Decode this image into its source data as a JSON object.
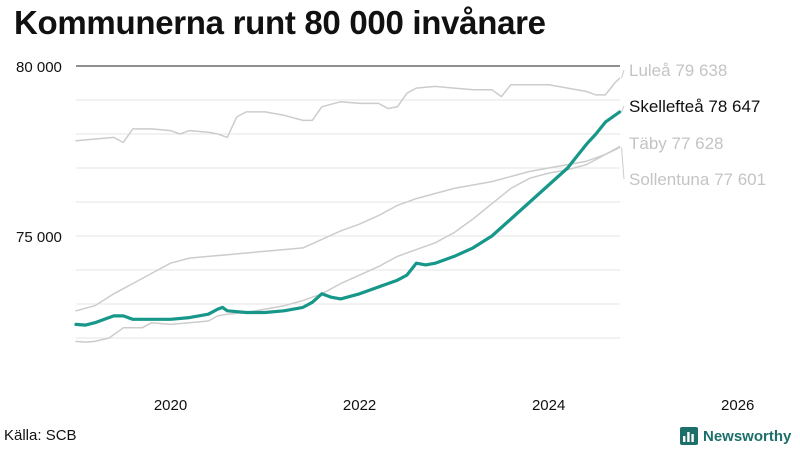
{
  "header": {
    "title": "Kommunerna runt 80 000 invånare"
  },
  "footer": {
    "source": "Källa: SCB",
    "brand": "Newsworthy",
    "brand_icon": "bar-chart-logo-icon",
    "brand_color": "#1d6f6a"
  },
  "chart_data": {
    "type": "line",
    "title": "Kommunerna runt 80 000 invånare",
    "xlabel": "",
    "ylabel": "",
    "xlim": [
      2019.0,
      2026.5
    ],
    "ylim": [
      71000,
      80000
    ],
    "x_ticks": [
      2020,
      2022,
      2024,
      2026
    ],
    "x_tick_labels": [
      "2020",
      "2022",
      "2024",
      "2026"
    ],
    "y_ticks": [
      75000,
      80000
    ],
    "y_tick_labels": [
      "75 000",
      "80 000"
    ],
    "gridlines_y": [
      72000,
      73000,
      74000,
      75000,
      76000,
      77000,
      78000,
      79000,
      80000
    ],
    "grid": true,
    "series": [
      {
        "name": "Luleå",
        "end_label": "Luleå 79 638",
        "color": "#cccccc",
        "label_color": "#c4c4c4",
        "highlight": false,
        "points": [
          [
            2019.0,
            77800
          ],
          [
            2019.4,
            77900
          ],
          [
            2019.5,
            77750
          ],
          [
            2019.6,
            78150
          ],
          [
            2019.8,
            78150
          ],
          [
            2020.0,
            78100
          ],
          [
            2020.1,
            78000
          ],
          [
            2020.2,
            78100
          ],
          [
            2020.4,
            78050
          ],
          [
            2020.5,
            78000
          ],
          [
            2020.6,
            77900
          ],
          [
            2020.7,
            78500
          ],
          [
            2020.8,
            78650
          ],
          [
            2021.0,
            78650
          ],
          [
            2021.2,
            78550
          ],
          [
            2021.4,
            78400
          ],
          [
            2021.5,
            78400
          ],
          [
            2021.6,
            78800
          ],
          [
            2021.8,
            78950
          ],
          [
            2022.0,
            78900
          ],
          [
            2022.2,
            78900
          ],
          [
            2022.3,
            78750
          ],
          [
            2022.4,
            78800
          ],
          [
            2022.5,
            79200
          ],
          [
            2022.6,
            79350
          ],
          [
            2022.8,
            79400
          ],
          [
            2023.0,
            79350
          ],
          [
            2023.2,
            79300
          ],
          [
            2023.4,
            79300
          ],
          [
            2023.5,
            79100
          ],
          [
            2023.6,
            79450
          ],
          [
            2023.8,
            79450
          ],
          [
            2024.0,
            79450
          ],
          [
            2024.2,
            79350
          ],
          [
            2024.4,
            79250
          ],
          [
            2024.5,
            79150
          ],
          [
            2024.6,
            79150
          ],
          [
            2024.7,
            79500
          ],
          [
            2024.75,
            79638
          ]
        ]
      },
      {
        "name": "Skellefteå",
        "end_label": "Skellefteå 78 647",
        "color": "#16978a",
        "label_color": "#111111",
        "highlight": true,
        "points": [
          [
            2019.0,
            72400
          ],
          [
            2019.1,
            72380
          ],
          [
            2019.2,
            72450
          ],
          [
            2019.3,
            72550
          ],
          [
            2019.4,
            72650
          ],
          [
            2019.5,
            72650
          ],
          [
            2019.6,
            72550
          ],
          [
            2019.8,
            72550
          ],
          [
            2020.0,
            72550
          ],
          [
            2020.2,
            72600
          ],
          [
            2020.4,
            72700
          ],
          [
            2020.5,
            72850
          ],
          [
            2020.55,
            72900
          ],
          [
            2020.6,
            72800
          ],
          [
            2020.8,
            72750
          ],
          [
            2021.0,
            72750
          ],
          [
            2021.2,
            72800
          ],
          [
            2021.4,
            72900
          ],
          [
            2021.5,
            73050
          ],
          [
            2021.6,
            73300
          ],
          [
            2021.7,
            73200
          ],
          [
            2021.8,
            73150
          ],
          [
            2022.0,
            73300
          ],
          [
            2022.2,
            73500
          ],
          [
            2022.4,
            73700
          ],
          [
            2022.5,
            73850
          ],
          [
            2022.6,
            74200
          ],
          [
            2022.7,
            74150
          ],
          [
            2022.8,
            74200
          ],
          [
            2023.0,
            74400
          ],
          [
            2023.2,
            74650
          ],
          [
            2023.4,
            75000
          ],
          [
            2023.6,
            75500
          ],
          [
            2023.8,
            76000
          ],
          [
            2024.0,
            76500
          ],
          [
            2024.2,
            77000
          ],
          [
            2024.3,
            77350
          ],
          [
            2024.4,
            77700
          ],
          [
            2024.5,
            78000
          ],
          [
            2024.6,
            78350
          ],
          [
            2024.75,
            78647
          ]
        ]
      },
      {
        "name": "Täby",
        "end_label": "Täby 77 628",
        "color": "#cccccc",
        "label_color": "#c4c4c4",
        "highlight": false,
        "points": [
          [
            2019.0,
            72800
          ],
          [
            2019.2,
            72950
          ],
          [
            2019.4,
            73300
          ],
          [
            2019.6,
            73600
          ],
          [
            2019.8,
            73900
          ],
          [
            2020.0,
            74200
          ],
          [
            2020.2,
            74350
          ],
          [
            2020.4,
            74400
          ],
          [
            2020.6,
            74450
          ],
          [
            2020.8,
            74500
          ],
          [
            2021.0,
            74550
          ],
          [
            2021.2,
            74600
          ],
          [
            2021.4,
            74650
          ],
          [
            2021.6,
            74900
          ],
          [
            2021.8,
            75150
          ],
          [
            2022.0,
            75350
          ],
          [
            2022.2,
            75600
          ],
          [
            2022.4,
            75900
          ],
          [
            2022.6,
            76100
          ],
          [
            2022.8,
            76250
          ],
          [
            2023.0,
            76400
          ],
          [
            2023.2,
            76500
          ],
          [
            2023.4,
            76600
          ],
          [
            2023.6,
            76750
          ],
          [
            2023.8,
            76900
          ],
          [
            2024.0,
            77000
          ],
          [
            2024.2,
            77100
          ],
          [
            2024.4,
            77200
          ],
          [
            2024.6,
            77400
          ],
          [
            2024.75,
            77628
          ]
        ]
      },
      {
        "name": "Sollentuna",
        "end_label": "Sollentuna 77 601",
        "color": "#cccccc",
        "label_color": "#c4c4c4",
        "highlight": false,
        "points": [
          [
            2019.0,
            71900
          ],
          [
            2019.1,
            71880
          ],
          [
            2019.2,
            71900
          ],
          [
            2019.35,
            72000
          ],
          [
            2019.5,
            72300
          ],
          [
            2019.7,
            72300
          ],
          [
            2019.8,
            72450
          ],
          [
            2020.0,
            72400
          ],
          [
            2020.2,
            72450
          ],
          [
            2020.4,
            72500
          ],
          [
            2020.5,
            72650
          ],
          [
            2020.6,
            72700
          ],
          [
            2020.8,
            72750
          ],
          [
            2021.0,
            72850
          ],
          [
            2021.2,
            72950
          ],
          [
            2021.4,
            73100
          ],
          [
            2021.6,
            73300
          ],
          [
            2021.8,
            73600
          ],
          [
            2022.0,
            73850
          ],
          [
            2022.2,
            74100
          ],
          [
            2022.4,
            74400
          ],
          [
            2022.6,
            74600
          ],
          [
            2022.8,
            74800
          ],
          [
            2023.0,
            75100
          ],
          [
            2023.2,
            75500
          ],
          [
            2023.4,
            75950
          ],
          [
            2023.6,
            76400
          ],
          [
            2023.8,
            76700
          ],
          [
            2024.0,
            76850
          ],
          [
            2024.2,
            76950
          ],
          [
            2024.4,
            77100
          ],
          [
            2024.6,
            77400
          ],
          [
            2024.75,
            77601
          ]
        ]
      }
    ]
  }
}
